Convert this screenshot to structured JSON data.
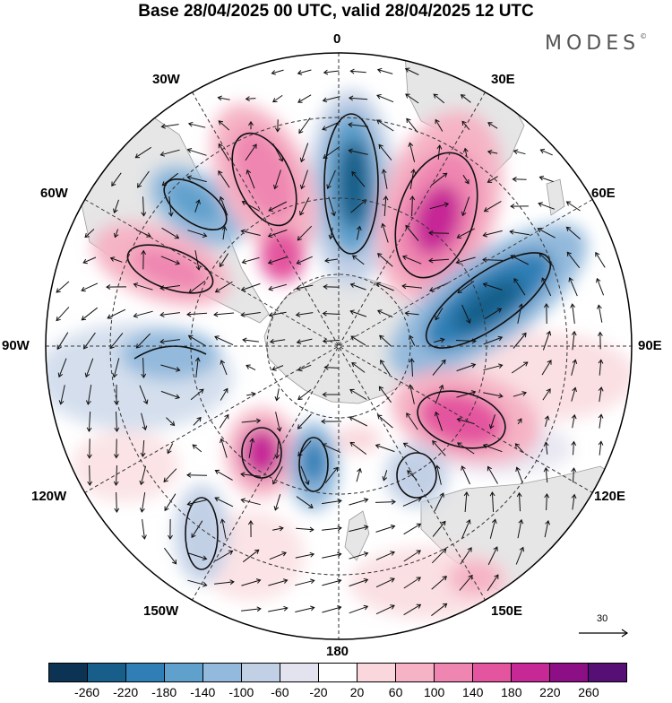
{
  "title": "Base 28/04/2025 00 UTC, valid 28/04/2025 12 UTC",
  "brand": "MODES",
  "brand_mark": "©",
  "meridian_labels": {
    "m0": "0",
    "m30e": "30E",
    "m60e": "60E",
    "m90e": "90E",
    "m120e": "120E",
    "m150e": "150E",
    "m180": "180",
    "m150w": "150W",
    "m120w": "120W",
    "m90w": "90W",
    "m60w": "60W",
    "m30w": "30W"
  },
  "reference_vector": "30",
  "colorbar": {
    "ticks": [
      "-260",
      "-220",
      "-180",
      "-140",
      "-100",
      "-60",
      "-20",
      "20",
      "60",
      "100",
      "140",
      "180",
      "220",
      "260"
    ],
    "colors": [
      "#0c3354",
      "#175e8a",
      "#2f7fb6",
      "#5fa0cc",
      "#93b9dc",
      "#c2d0e6",
      "#e3e2ef",
      "#ffffff",
      "#f9d7dc",
      "#f5b3c5",
      "#ef86b1",
      "#e4559f",
      "#c62896",
      "#8c0f86",
      "#560f74"
    ]
  },
  "map": {
    "projection": "polar stereographic (south pole)",
    "anomalies": [
      {
        "sign": "negative",
        "level": -200,
        "location": "near 0 meridian"
      },
      {
        "sign": "positive",
        "level": 220,
        "location": "30E-45E"
      },
      {
        "sign": "negative",
        "level": -180,
        "location": "60E-80E"
      },
      {
        "sign": "positive",
        "level": 180,
        "location": "100E-110E"
      },
      {
        "sign": "negative",
        "level": -120,
        "location": "40W"
      },
      {
        "sign": "positive",
        "level": 140,
        "location": "20W"
      },
      {
        "sign": "positive",
        "level": 140,
        "location": "60W-70W"
      },
      {
        "sign": "negative",
        "level": -100,
        "location": "90W"
      },
      {
        "sign": "positive",
        "level": 220,
        "location": "150W-160W"
      },
      {
        "sign": "negative",
        "level": -140,
        "location": "170E-180"
      },
      {
        "sign": "negative",
        "level": -60,
        "location": "130W"
      },
      {
        "sign": "negative",
        "level": -60,
        "location": "140E"
      }
    ]
  }
}
